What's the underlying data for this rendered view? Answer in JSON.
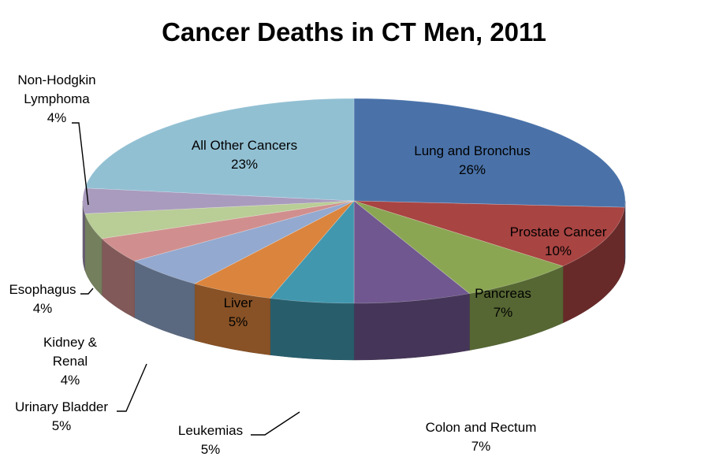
{
  "chart_data": {
    "type": "pie",
    "style": "3d",
    "title": "Cancer Deaths in CT Men, 2011",
    "slices": [
      {
        "name": "Lung and Bronchus",
        "label_lines": [
          "Lung and Bronchus"
        ],
        "value": 26,
        "value_label": "26%",
        "color": "#4A72A9"
      },
      {
        "name": "Prostate Cancer",
        "label_lines": [
          "Prostate Cancer"
        ],
        "value": 10,
        "value_label": "10%",
        "color": "#A84442"
      },
      {
        "name": "Pancreas",
        "label_lines": [
          "Pancreas"
        ],
        "value": 7,
        "value_label": "7%",
        "color": "#8BA653"
      },
      {
        "name": "Colon and Rectum",
        "label_lines": [
          "Colon and Rectum"
        ],
        "value": 7,
        "value_label": "7%",
        "color": "#70578F"
      },
      {
        "name": "Leukemias",
        "label_lines": [
          "Leukemias"
        ],
        "value": 5,
        "value_label": "5%",
        "color": "#4197AE"
      },
      {
        "name": "Liver",
        "label_lines": [
          "Liver"
        ],
        "value": 5,
        "value_label": "5%",
        "color": "#DB843D"
      },
      {
        "name": "Urinary Bladder",
        "label_lines": [
          "Urinary Bladder"
        ],
        "value": 5,
        "value_label": "5%",
        "color": "#93A9CF"
      },
      {
        "name": "Kidney & Renal",
        "label_lines": [
          "Kidney &",
          "Renal"
        ],
        "value": 4,
        "value_label": "4%",
        "color": "#D08F8E"
      },
      {
        "name": "Esophagus",
        "label_lines": [
          "Esophagus"
        ],
        "value": 4,
        "value_label": "4%",
        "color": "#B9CD96"
      },
      {
        "name": "Non-Hodgkin Lymphoma",
        "label_lines": [
          "Non-Hodgkin",
          "Lymphoma"
        ],
        "value": 4,
        "value_label": "4%",
        "color": "#A99BBD"
      },
      {
        "name": "All Other Cancers",
        "label_lines": [
          "All Other Cancers"
        ],
        "value": 23,
        "value_label": "23%",
        "color": "#92C0D3"
      }
    ]
  }
}
